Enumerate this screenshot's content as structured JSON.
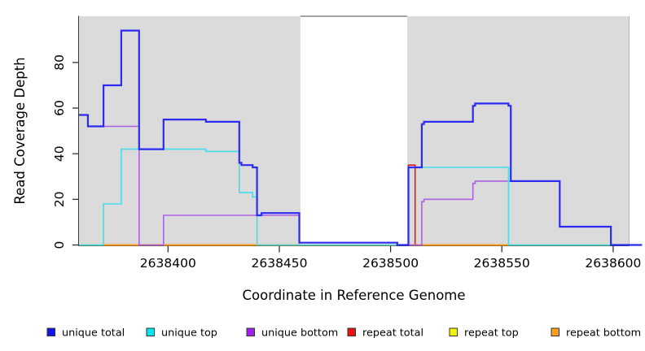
{
  "chart_data": {
    "type": "line",
    "subtype": "step-coverage",
    "title": "",
    "xlabel": "Coordinate in Reference Genome",
    "ylabel": "Read Coverage Depth",
    "xlim": [
      2638360,
      2638607
    ],
    "ylim": [
      0,
      100
    ],
    "grid": false,
    "x_ticks": [
      {
        "value": 2638400,
        "label": "2638400"
      },
      {
        "value": 2638450,
        "label": "2638450"
      },
      {
        "value": 2638500,
        "label": "2638500"
      },
      {
        "value": 2638550,
        "label": "2638550"
      },
      {
        "value": 2638600,
        "label": "2638600"
      }
    ],
    "y_ticks": [
      {
        "value": 0,
        "label": "0"
      },
      {
        "value": 20,
        "label": "20"
      },
      {
        "value": 40,
        "label": "40"
      },
      {
        "value": 60,
        "label": "60"
      },
      {
        "value": 80,
        "label": "80"
      }
    ],
    "repeat_regions": [
      {
        "x0": 2638360,
        "x1": 2638459.5,
        "color": "#DBDBDB"
      },
      {
        "x0": 2638507.5,
        "x1": 2638607,
        "color": "#DBDBDB"
      }
    ],
    "gap_top_line": {
      "x0": 2638459.5,
      "x1": 2638507.5,
      "color": "#858585"
    },
    "series": [
      {
        "name": "repeat top",
        "color": "#F2F200",
        "width": 1.4,
        "points": [
          [
            2638360,
            0
          ],
          [
            2638607,
            0
          ]
        ]
      },
      {
        "name": "zero baseline",
        "color": "#8BC98B",
        "width": 1.5,
        "points": [
          [
            2638360,
            0
          ],
          [
            2638607,
            0
          ]
        ]
      },
      {
        "name": "repeat total",
        "color": "#E01818",
        "width": 1.6,
        "points": [
          [
            2638503,
            0
          ],
          [
            2638508,
            35
          ],
          [
            2638511,
            0
          ],
          [
            2638520,
            0
          ]
        ]
      },
      {
        "name": "repeat bottom",
        "color": "#FF9C1A",
        "width": 2,
        "points": [
          [
            2638371,
            0
          ],
          [
            2638554,
            0
          ]
        ]
      },
      {
        "name": "unique bottom",
        "color": "#AB63E3",
        "width": 1.6,
        "points": [
          [
            2638360,
            57
          ],
          [
            2638364,
            52
          ],
          [
            2638387,
            0
          ],
          [
            2638398,
            13
          ],
          [
            2638459,
            1
          ],
          [
            2638503,
            0
          ],
          [
            2638514,
            19
          ],
          [
            2638515,
            20
          ],
          [
            2638537,
            27
          ],
          [
            2638538,
            28
          ],
          [
            2638576,
            8
          ],
          [
            2638599,
            0
          ],
          [
            2638607,
            0
          ]
        ]
      },
      {
        "name": "unique top",
        "color": "#45DCEC",
        "width": 1.6,
        "points": [
          [
            2638360,
            0
          ],
          [
            2638371,
            18
          ],
          [
            2638379,
            42
          ],
          [
            2638417,
            41
          ],
          [
            2638432,
            23
          ],
          [
            2638438,
            21
          ],
          [
            2638440,
            0
          ],
          [
            2638508,
            34
          ],
          [
            2638553,
            0
          ],
          [
            2638607,
            0
          ]
        ]
      },
      {
        "name": "unique total",
        "color": "#2B2BF2",
        "width": 2.2,
        "points": [
          [
            2638360,
            57
          ],
          [
            2638364,
            52
          ],
          [
            2638371,
            70
          ],
          [
            2638379,
            94
          ],
          [
            2638387,
            42
          ],
          [
            2638398,
            55
          ],
          [
            2638417,
            54
          ],
          [
            2638432,
            36
          ],
          [
            2638433,
            35
          ],
          [
            2638438,
            34
          ],
          [
            2638440,
            13
          ],
          [
            2638442,
            14
          ],
          [
            2638459,
            1
          ],
          [
            2638503,
            0
          ],
          [
            2638508,
            34
          ],
          [
            2638514,
            53
          ],
          [
            2638515,
            54
          ],
          [
            2638537,
            61
          ],
          [
            2638538,
            62
          ],
          [
            2638553,
            61
          ],
          [
            2638554,
            28
          ],
          [
            2638576,
            8
          ],
          [
            2638599,
            0
          ],
          [
            2638613,
            0
          ]
        ]
      }
    ]
  },
  "legend": {
    "swatch_border": "#333333",
    "items": [
      {
        "label": "unique total",
        "color": "#1515E8"
      },
      {
        "label": "unique top",
        "color": "#00E6F2"
      },
      {
        "label": "unique bottom",
        "color": "#A020F0"
      },
      {
        "label": "repeat total",
        "color": "#EE1111"
      },
      {
        "label": "repeat top",
        "color": "#F4F400"
      },
      {
        "label": "repeat bottom",
        "color": "#FFA018"
      }
    ]
  }
}
